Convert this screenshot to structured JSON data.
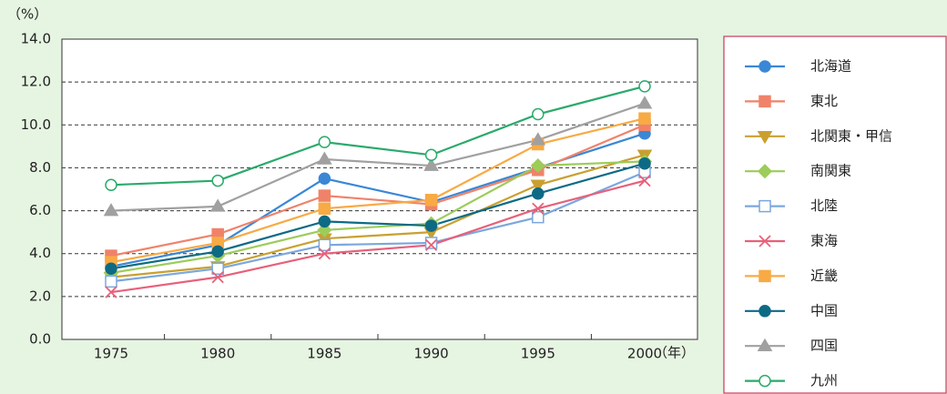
{
  "chart_data": {
    "type": "line",
    "y_unit": "（%）",
    "x_unit": "（年）",
    "categories": [
      "1975",
      "1980",
      "1985",
      "1990",
      "1995",
      "2000"
    ],
    "ylim": [
      0,
      14
    ],
    "yticks": [
      {
        "value": 0,
        "label": "0.0"
      },
      {
        "value": 2,
        "label": "2.0"
      },
      {
        "value": 4,
        "label": "4.0"
      },
      {
        "value": 6,
        "label": "6.0"
      },
      {
        "value": 8,
        "label": "8.0"
      },
      {
        "value": 10,
        "label": "10.0"
      },
      {
        "value": 12,
        "label": "12.0"
      },
      {
        "value": 14,
        "label": "14.0"
      }
    ],
    "grid": true,
    "legend": "right",
    "series": [
      {
        "name": "北海道",
        "color": "#3a87d6",
        "marker": "circle",
        "values": [
          3.4,
          4.4,
          7.5,
          6.4,
          8.0,
          9.6
        ]
      },
      {
        "name": "東北",
        "color": "#f0826a",
        "marker": "square",
        "values": [
          3.9,
          4.9,
          6.7,
          6.3,
          7.9,
          10.0
        ]
      },
      {
        "name": "北関東・甲信",
        "color": "#c9a030",
        "marker": "triangle-down",
        "values": [
          2.9,
          3.4,
          4.7,
          5.0,
          7.2,
          8.6
        ]
      },
      {
        "name": "南関東",
        "color": "#9ccc5a",
        "marker": "diamond",
        "values": [
          3.1,
          3.9,
          5.1,
          5.4,
          8.1,
          8.3
        ]
      },
      {
        "name": "北陸",
        "color": "#7aa7de",
        "marker": "square-open",
        "values": [
          2.7,
          3.3,
          4.4,
          4.5,
          5.7,
          7.8
        ]
      },
      {
        "name": "東海",
        "color": "#e8607a",
        "marker": "cross",
        "values": [
          2.2,
          2.9,
          4.0,
          4.4,
          6.1,
          7.4
        ]
      },
      {
        "name": "近畿",
        "color": "#f8aa44",
        "marker": "square",
        "values": [
          3.6,
          4.5,
          6.1,
          6.5,
          9.1,
          10.3
        ]
      },
      {
        "name": "中国",
        "color": "#0d6a85",
        "marker": "circle",
        "values": [
          3.3,
          4.1,
          5.5,
          5.3,
          6.8,
          8.2
        ]
      },
      {
        "name": "四国",
        "color": "#a0a0a0",
        "marker": "triangle-up",
        "values": [
          6.0,
          6.2,
          8.4,
          8.1,
          9.3,
          11.0
        ]
      },
      {
        "name": "九州",
        "color": "#2aaa6a",
        "marker": "circle-open",
        "values": [
          7.2,
          7.4,
          9.2,
          8.6,
          10.5,
          11.8
        ]
      }
    ]
  }
}
